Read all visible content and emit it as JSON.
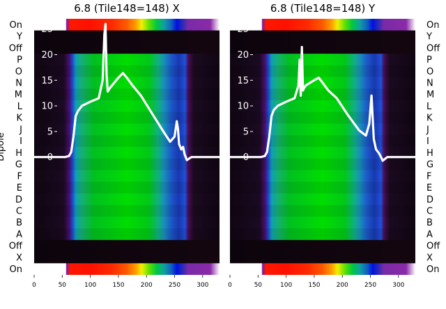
{
  "chart_data": [
    {
      "type": "heatmap",
      "title": "6.8 (Tile148=148) X",
      "xlabel": "",
      "ylabel": "Dipole",
      "x_ticks": [
        0,
        50,
        100,
        150,
        200,
        250,
        300
      ],
      "xlim": [
        0,
        330
      ],
      "overlay_y_ticks": [
        0,
        5,
        10,
        15,
        20,
        25
      ],
      "overlay_ylim": [
        -23,
        27
      ],
      "row_labels_top_to_bottom": [
        "On",
        "Y",
        "Off",
        "P",
        "O",
        "N",
        "M",
        "L",
        "K",
        "J",
        "I",
        "H",
        "G",
        "F",
        "E",
        "D",
        "C",
        "B",
        "A",
        "Off",
        "X",
        "On"
      ],
      "overlay_series": {
        "name": "",
        "x": [
          0,
          40,
          55,
          62,
          66,
          70,
          74,
          78,
          85,
          100,
          115,
          122,
          125,
          127,
          129,
          131,
          135,
          150,
          158,
          165,
          175,
          190,
          210,
          230,
          242,
          250,
          254,
          256,
          258,
          262,
          265,
          268,
          272,
          280,
          300,
          330
        ],
        "y": [
          0,
          0,
          0,
          0.2,
          1,
          4,
          8,
          9,
          10,
          10.8,
          11.5,
          15,
          24,
          26,
          16,
          12.8,
          13.5,
          15.5,
          16.4,
          15.5,
          14,
          12,
          8.5,
          5,
          3,
          4,
          7,
          5.5,
          2.5,
          1.5,
          2,
          0.5,
          -0.6,
          0,
          0,
          0
        ]
      }
    },
    {
      "type": "heatmap",
      "title": "6.8 (Tile148=148) Y",
      "xlabel": "",
      "ylabel": "",
      "x_ticks": [
        0,
        50,
        100,
        150,
        200,
        250,
        300
      ],
      "xlim": [
        0,
        330
      ],
      "overlay_y_ticks": [
        0,
        5,
        10,
        15,
        20,
        25
      ],
      "overlay_ylim": [
        -23,
        27
      ],
      "row_labels_top_to_bottom": [
        "On",
        "Y",
        "Off",
        "P",
        "O",
        "N",
        "M",
        "L",
        "K",
        "J",
        "I",
        "H",
        "G",
        "F",
        "E",
        "D",
        "C",
        "B",
        "A",
        "Off",
        "X",
        "On"
      ],
      "overlay_series": {
        "name": "",
        "x": [
          0,
          40,
          55,
          62,
          66,
          70,
          74,
          78,
          85,
          100,
          115,
          122,
          124,
          126,
          128,
          130,
          132,
          135,
          150,
          158,
          165,
          175,
          190,
          210,
          230,
          242,
          248,
          252,
          256,
          260,
          265,
          268,
          272,
          280,
          300,
          330
        ],
        "y": [
          0,
          0,
          0,
          0.2,
          1,
          4,
          8,
          9.2,
          10,
          10.8,
          11.5,
          14,
          19,
          12,
          21.5,
          13,
          13.5,
          14,
          15,
          15.5,
          14.5,
          13,
          11.5,
          8.2,
          5.2,
          4.2,
          6.5,
          12,
          3.5,
          1.5,
          0.8,
          0.2,
          -0.7,
          0,
          0,
          0
        ]
      }
    }
  ]
}
